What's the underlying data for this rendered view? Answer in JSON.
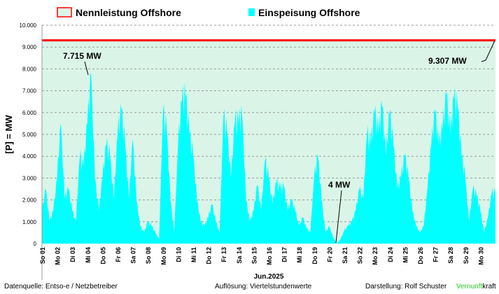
{
  "chart_data": {
    "type": "area",
    "ylabel": "[P] = MW",
    "xlabel": "Jun.2025",
    "ylim": [
      0,
      10000
    ],
    "yticks": [
      0,
      1000,
      2000,
      3000,
      4000,
      5000,
      6000,
      7000,
      8000,
      9000,
      10000
    ],
    "ytick_labels": [
      "0",
      "1.000",
      "2.000",
      "3.000",
      "4.000",
      "5.000",
      "6.000",
      "7.000",
      "8.000",
      "9.000",
      "10.000"
    ],
    "grid": true,
    "legend_placement": "top",
    "x_tick_labels": [
      "So 01",
      "Mo 02",
      "Di 03",
      "Mi 04",
      "Do 05",
      "Fr 06",
      "Sa 07",
      "So 08",
      "Mo 09",
      "Di 10",
      "Mi 11",
      "Do 12",
      "Fr 13",
      "Sa 14",
      "So 15",
      "Mo 16",
      "Di 17",
      "Mi 18",
      "Do 19",
      "Fr 20",
      "Sa 21",
      "So 22",
      "Mo 23",
      "Di 24",
      "Mi 25",
      "Do 26",
      "Fr 27",
      "Sa 28",
      "So 29",
      "Mo 30"
    ],
    "series": [
      {
        "name": "Nennleistung Offshore",
        "color": "#ff0000",
        "fill": "#daf5e8",
        "value": 9307
      },
      {
        "name": "Einspeisung Offshore",
        "color": "#00ffff",
        "samples_per_day": 4,
        "values": [
          1500,
          2500,
          1000,
          1500,
          3000,
          5500,
          2000,
          2500,
          1500,
          1000,
          4000,
          3500,
          5500,
          7715,
          3000,
          1500,
          3000,
          4500,
          4000,
          2000,
          5000,
          6100,
          4500,
          2000,
          4800,
          2000,
          800,
          500,
          1000,
          800,
          500,
          200,
          6000,
          5200,
          2000,
          500,
          4500,
          6500,
          6700,
          5000,
          4000,
          2000,
          1000,
          800,
          1200,
          1800,
          1000,
          500,
          5800,
          5000,
          3000,
          5500,
          5500,
          5800,
          2000,
          1000,
          1500,
          2700,
          1500,
          3800,
          3000,
          1800,
          2800,
          2500,
          2600,
          1500,
          2000,
          1500,
          800,
          1200,
          700,
          500,
          3000,
          4000,
          2000,
          500,
          800,
          300,
          4,
          200,
          600,
          800,
          1000,
          1500,
          2500,
          2000,
          5000,
          4500,
          6000,
          5000,
          6300,
          4000,
          6000,
          4500,
          2500,
          3000,
          4000,
          3000,
          1500,
          800,
          500,
          800,
          2500,
          4500,
          6000,
          4500,
          5200,
          6800,
          5000,
          6600,
          6200,
          4000,
          3000,
          1000,
          2500,
          2200,
          1500,
          500,
          1200,
          2300
        ]
      }
    ],
    "annotations": [
      {
        "text": "7.715 MW",
        "value": 7715
      },
      {
        "text": "9.307 MW",
        "value": 9307
      },
      {
        "text": "4 MW",
        "value": 4
      }
    ]
  },
  "footer": {
    "source": "Datenquelle:  Entso-e  / Netzbetreiber",
    "resolution": "Auflösung: Viertelstundenwerte",
    "author": "Darstellung:  Rolf Schuster",
    "brand_green": "Vernunft",
    "brand_black": "kraft",
    "brand_color": "#22cc22"
  }
}
